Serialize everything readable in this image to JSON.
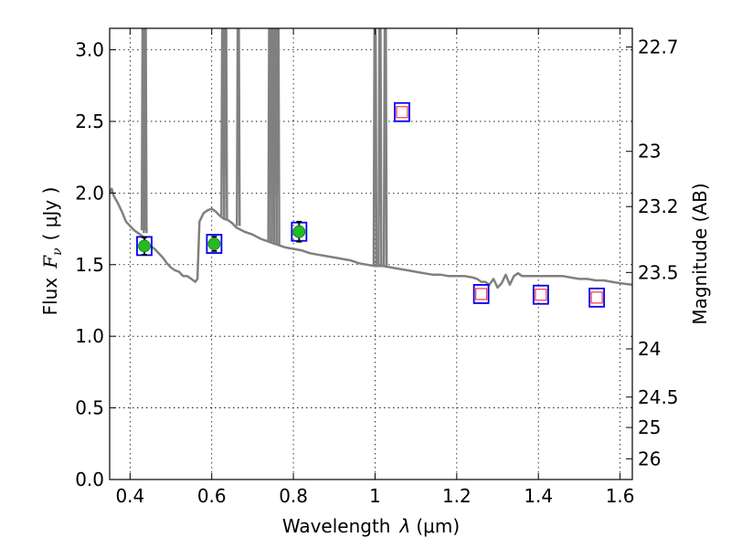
{
  "colors": {
    "spectrum": "#808080",
    "detection_fill": "#22bb22",
    "square_border": "#0000ee",
    "upper_limit_inner": "#ff3344"
  },
  "chart_data": {
    "type": "scatter",
    "xlabel_prefix": "Wavelength",
    "xlabel_lambda": "λ",
    "xlabel_unit": "(μm)",
    "ylabel_prefix": "Flux",
    "ylabel_symbol": "F",
    "ylabel_sub": "ν",
    "ylabel_unit": "( μJy )",
    "y2label": "Magnitude (AB)",
    "xlim": [
      0.35,
      1.63
    ],
    "ylim": [
      0.0,
      3.15
    ],
    "xticks": [
      0.4,
      0.6,
      0.8,
      1.0,
      1.2,
      1.4,
      1.6
    ],
    "xtick_labels": [
      "0.4",
      "0.6",
      "0.8",
      "1",
      "1.2",
      "1.4",
      "1.6"
    ],
    "yticks": [
      0.0,
      0.5,
      1.0,
      1.5,
      2.0,
      2.5,
      3.0
    ],
    "ytick_labels": [
      "0.0",
      "0.5",
      "1.0",
      "1.5",
      "2.0",
      "2.5",
      "3.0"
    ],
    "mag_ticks": [
      "22.7",
      "23",
      "23.2",
      "23.5",
      "24",
      "24.5",
      "25",
      "26"
    ],
    "grid": true,
    "detections": [
      {
        "x": 0.435,
        "y": 1.63,
        "err": 0.06
      },
      {
        "x": 0.606,
        "y": 1.645,
        "err": 0.05
      },
      {
        "x": 0.814,
        "y": 1.73,
        "err": 0.07
      }
    ],
    "upper_limits": [
      {
        "x": 1.066,
        "y": 2.565
      },
      {
        "x": 1.26,
        "y": 1.295
      },
      {
        "x": 1.406,
        "y": 1.29
      },
      {
        "x": 1.543,
        "y": 1.27
      }
    ],
    "spectrum": {
      "continuum": [
        [
          0.35,
          2.0
        ],
        [
          0.355,
          2.03
        ],
        [
          0.36,
          1.98
        ],
        [
          0.37,
          1.93
        ],
        [
          0.38,
          1.87
        ],
        [
          0.39,
          1.8
        ],
        [
          0.4,
          1.77
        ],
        [
          0.41,
          1.74
        ],
        [
          0.42,
          1.72
        ],
        [
          0.43,
          1.7
        ],
        [
          0.44,
          1.66
        ],
        [
          0.45,
          1.63
        ],
        [
          0.46,
          1.61
        ],
        [
          0.47,
          1.58
        ],
        [
          0.48,
          1.55
        ],
        [
          0.49,
          1.51
        ],
        [
          0.5,
          1.48
        ],
        [
          0.51,
          1.46
        ],
        [
          0.52,
          1.45
        ],
        [
          0.53,
          1.42
        ],
        [
          0.54,
          1.42
        ],
        [
          0.55,
          1.4
        ],
        [
          0.56,
          1.38
        ],
        [
          0.565,
          1.4
        ],
        [
          0.57,
          1.8
        ],
        [
          0.58,
          1.86
        ],
        [
          0.59,
          1.88
        ],
        [
          0.6,
          1.89
        ],
        [
          0.61,
          1.87
        ],
        [
          0.62,
          1.84
        ],
        [
          0.63,
          1.82
        ],
        [
          0.64,
          1.81
        ],
        [
          0.65,
          1.79
        ],
        [
          0.66,
          1.76
        ],
        [
          0.68,
          1.73
        ],
        [
          0.7,
          1.71
        ],
        [
          0.72,
          1.68
        ],
        [
          0.74,
          1.66
        ],
        [
          0.76,
          1.64
        ],
        [
          0.78,
          1.62
        ],
        [
          0.8,
          1.61
        ],
        [
          0.82,
          1.6
        ],
        [
          0.84,
          1.58
        ],
        [
          0.86,
          1.57
        ],
        [
          0.88,
          1.56
        ],
        [
          0.9,
          1.55
        ],
        [
          0.92,
          1.54
        ],
        [
          0.94,
          1.53
        ],
        [
          0.96,
          1.51
        ],
        [
          0.98,
          1.5
        ],
        [
          1.0,
          1.49
        ],
        [
          1.02,
          1.49
        ],
        [
          1.04,
          1.48
        ],
        [
          1.06,
          1.47
        ],
        [
          1.08,
          1.46
        ],
        [
          1.1,
          1.45
        ],
        [
          1.12,
          1.44
        ],
        [
          1.14,
          1.43
        ],
        [
          1.16,
          1.43
        ],
        [
          1.18,
          1.42
        ],
        [
          1.2,
          1.42
        ],
        [
          1.22,
          1.42
        ],
        [
          1.24,
          1.41
        ],
        [
          1.25,
          1.4
        ],
        [
          1.26,
          1.38
        ],
        [
          1.27,
          1.38
        ],
        [
          1.28,
          1.36
        ],
        [
          1.29,
          1.4
        ],
        [
          1.3,
          1.34
        ],
        [
          1.31,
          1.37
        ],
        [
          1.32,
          1.43
        ],
        [
          1.33,
          1.36
        ],
        [
          1.34,
          1.42
        ],
        [
          1.35,
          1.44
        ],
        [
          1.36,
          1.42
        ],
        [
          1.38,
          1.42
        ],
        [
          1.4,
          1.42
        ],
        [
          1.42,
          1.42
        ],
        [
          1.44,
          1.42
        ],
        [
          1.46,
          1.42
        ],
        [
          1.48,
          1.41
        ],
        [
          1.5,
          1.4
        ],
        [
          1.52,
          1.4
        ],
        [
          1.54,
          1.39
        ],
        [
          1.56,
          1.39
        ],
        [
          1.58,
          1.38
        ],
        [
          1.6,
          1.37
        ],
        [
          1.63,
          1.36
        ]
      ],
      "emission_lines": [
        {
          "x": 0.432,
          "y_base": 1.74,
          "y_peak": 3.2
        },
        {
          "x": 0.437,
          "y_base": 1.72,
          "y_peak": 3.2
        },
        {
          "x": 0.627,
          "y_base": 1.84,
          "y_peak": 3.2
        },
        {
          "x": 0.634,
          "y_base": 1.82,
          "y_peak": 3.2
        },
        {
          "x": 0.665,
          "y_base": 1.77,
          "y_peak": 3.2
        },
        {
          "x": 0.742,
          "y_base": 1.66,
          "y_peak": 3.2
        },
        {
          "x": 0.748,
          "y_base": 1.66,
          "y_peak": 3.2
        },
        {
          "x": 0.756,
          "y_base": 1.64,
          "y_peak": 3.2
        },
        {
          "x": 0.762,
          "y_base": 1.64,
          "y_peak": 3.2
        },
        {
          "x": 1.0,
          "y_base": 1.49,
          "y_peak": 3.2
        },
        {
          "x": 1.012,
          "y_base": 1.49,
          "y_peak": 3.2
        },
        {
          "x": 1.025,
          "y_base": 1.49,
          "y_peak": 3.2
        }
      ]
    }
  }
}
